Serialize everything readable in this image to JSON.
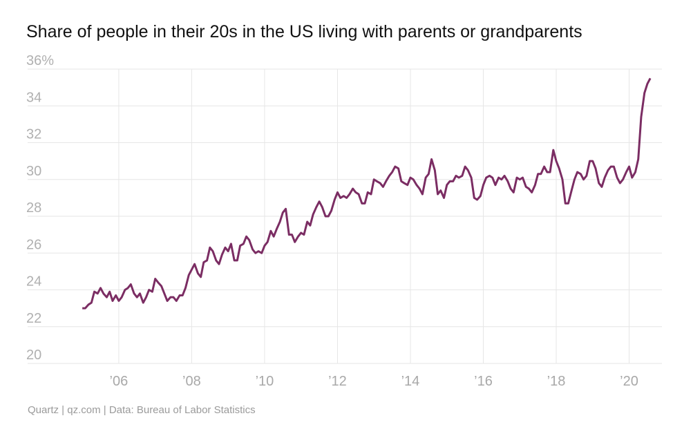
{
  "chart_data": {
    "type": "line",
    "title": "Share of people in their 20s in the US living with parents or grandparents",
    "source": "Quartz | qz.com | Data: Bureau of Labor Statistics",
    "x": [
      2005,
      2005.08,
      2005.17,
      2005.25,
      2005.33,
      2005.42,
      2005.5,
      2005.58,
      2005.67,
      2005.75,
      2005.83,
      2005.92,
      2006,
      2006.08,
      2006.17,
      2006.25,
      2006.33,
      2006.42,
      2006.5,
      2006.58,
      2006.67,
      2006.75,
      2006.83,
      2006.92,
      2007,
      2007.08,
      2007.17,
      2007.25,
      2007.33,
      2007.42,
      2007.5,
      2007.58,
      2007.67,
      2007.75,
      2007.83,
      2007.92,
      2008,
      2008.08,
      2008.17,
      2008.25,
      2008.33,
      2008.42,
      2008.5,
      2008.58,
      2008.67,
      2008.75,
      2008.83,
      2008.92,
      2009,
      2009.08,
      2009.17,
      2009.25,
      2009.33,
      2009.42,
      2009.5,
      2009.58,
      2009.67,
      2009.75,
      2009.83,
      2009.92,
      2010,
      2010.08,
      2010.17,
      2010.25,
      2010.33,
      2010.42,
      2010.5,
      2010.58,
      2010.67,
      2010.75,
      2010.83,
      2010.92,
      2011,
      2011.08,
      2011.17,
      2011.25,
      2011.33,
      2011.42,
      2011.5,
      2011.58,
      2011.67,
      2011.75,
      2011.83,
      2011.92,
      2012,
      2012.08,
      2012.17,
      2012.25,
      2012.33,
      2012.42,
      2012.5,
      2012.58,
      2012.67,
      2012.75,
      2012.83,
      2012.92,
      2013,
      2013.08,
      2013.17,
      2013.25,
      2013.33,
      2013.42,
      2013.5,
      2013.58,
      2013.67,
      2013.75,
      2013.83,
      2013.92,
      2014,
      2014.08,
      2014.17,
      2014.25,
      2014.33,
      2014.42,
      2014.5,
      2014.58,
      2014.67,
      2014.75,
      2014.83,
      2014.92,
      2015,
      2015.08,
      2015.17,
      2015.25,
      2015.33,
      2015.42,
      2015.5,
      2015.58,
      2015.67,
      2015.75,
      2015.83,
      2015.92,
      2016,
      2016.08,
      2016.17,
      2016.25,
      2016.33,
      2016.42,
      2016.5,
      2016.58,
      2016.67,
      2016.75,
      2016.83,
      2016.92,
      2017,
      2017.08,
      2017.17,
      2017.25,
      2017.33,
      2017.42,
      2017.5,
      2017.58,
      2017.67,
      2017.75,
      2017.83,
      2017.92,
      2018,
      2018.08,
      2018.17,
      2018.25,
      2018.33,
      2018.42,
      2018.5,
      2018.58,
      2018.67,
      2018.75,
      2018.83,
      2018.92,
      2019,
      2019.08,
      2019.17,
      2019.25,
      2019.33,
      2019.42,
      2019.5,
      2019.58,
      2019.67,
      2019.75,
      2019.83,
      2019.92,
      2020,
      2020.08,
      2020.17,
      2020.25,
      2020.33,
      2020.42,
      2020.5,
      2020.58
    ],
    "series": [
      {
        "name": "Share",
        "color": "#7b2d63",
        "values": [
          23.0,
          23.0,
          23.2,
          23.3,
          23.9,
          23.8,
          24.1,
          23.8,
          23.6,
          23.9,
          23.4,
          23.7,
          23.4,
          23.6,
          24.0,
          24.1,
          24.3,
          23.8,
          23.6,
          23.8,
          23.3,
          23.6,
          24.0,
          23.9,
          24.6,
          24.4,
          24.2,
          23.8,
          23.4,
          23.6,
          23.6,
          23.4,
          23.7,
          23.7,
          24.1,
          24.8,
          25.1,
          25.4,
          24.9,
          24.7,
          25.5,
          25.6,
          26.3,
          26.1,
          25.6,
          25.4,
          25.9,
          26.3,
          26.1,
          26.5,
          25.6,
          25.6,
          26.4,
          26.5,
          26.9,
          26.7,
          26.2,
          26.0,
          26.1,
          26.0,
          26.4,
          26.6,
          27.2,
          26.9,
          27.3,
          27.7,
          28.2,
          28.4,
          27.0,
          27.0,
          26.6,
          26.9,
          27.1,
          27.0,
          27.7,
          27.5,
          28.1,
          28.5,
          28.8,
          28.5,
          28.0,
          28.0,
          28.3,
          28.9,
          29.3,
          29.0,
          29.1,
          29.0,
          29.2,
          29.5,
          29.3,
          29.2,
          28.7,
          28.7,
          29.3,
          29.2,
          30.0,
          29.9,
          29.8,
          29.6,
          29.9,
          30.2,
          30.4,
          30.7,
          30.6,
          29.9,
          29.8,
          29.7,
          30.1,
          30.0,
          29.7,
          29.5,
          29.2,
          30.1,
          30.3,
          31.1,
          30.5,
          29.2,
          29.4,
          29.0,
          29.7,
          29.9,
          29.9,
          30.2,
          30.1,
          30.2,
          30.7,
          30.5,
          30.1,
          29.0,
          28.9,
          29.1,
          29.7,
          30.1,
          30.2,
          30.1,
          29.7,
          30.1,
          30.0,
          30.2,
          29.9,
          29.5,
          29.3,
          30.1,
          30.0,
          30.1,
          29.6,
          29.5,
          29.3,
          29.7,
          30.3,
          30.3,
          30.7,
          30.4,
          30.4,
          31.6,
          31.0,
          30.6,
          30.0,
          28.7,
          28.7,
          29.4,
          30.0,
          30.4,
          30.3,
          30.0,
          30.2,
          31.0,
          31.0,
          30.6,
          29.8,
          29.6,
          30.1,
          30.5,
          30.7,
          30.7,
          30.1,
          29.8,
          30.0,
          30.4,
          30.7,
          30.1,
          30.4,
          31.1,
          33.4,
          34.7,
          35.2,
          35.5
        ]
      }
    ],
    "xlim": [
      2003.5,
      2020.9
    ],
    "xticks": [
      {
        "value": 2006,
        "label": "’06"
      },
      {
        "value": 2008,
        "label": "’08"
      },
      {
        "value": 2010,
        "label": "’10"
      },
      {
        "value": 2012,
        "label": "’12"
      },
      {
        "value": 2014,
        "label": "’14"
      },
      {
        "value": 2016,
        "label": "’16"
      },
      {
        "value": 2018,
        "label": "’18"
      },
      {
        "value": 2020,
        "label": "’20"
      }
    ],
    "ylim": [
      20,
      36
    ],
    "yticks": [
      20,
      22,
      24,
      26,
      28,
      30,
      32,
      34,
      {
        "value": 36,
        "label": "36%"
      }
    ],
    "grid": true
  }
}
